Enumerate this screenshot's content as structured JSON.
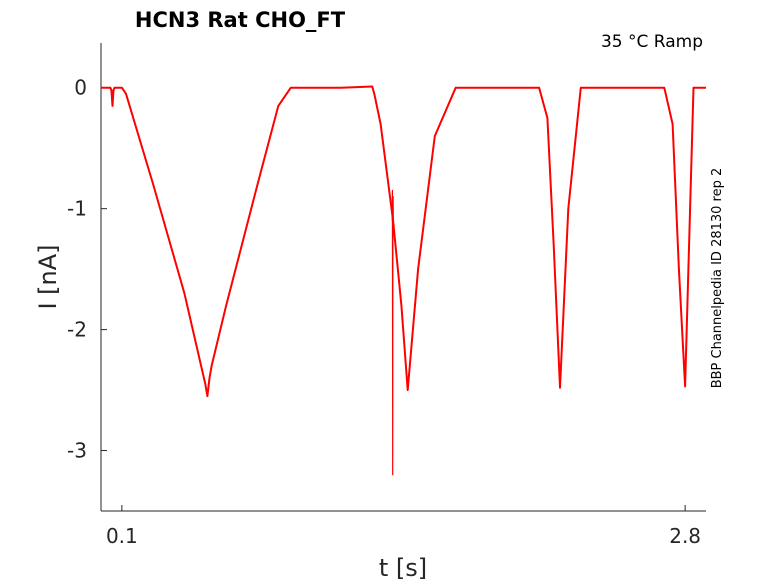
{
  "chart_data": {
    "type": "line",
    "title": "HCN3  Rat  CHO_FT",
    "annotation": "35 °C  Ramp",
    "side_label": "BBP Channelpedia ID 28130 rep 2",
    "xlabel": "t [s]",
    "ylabel": "I [nA]",
    "xlim": [
      0.0,
      2.9
    ],
    "ylim": [
      -3.5,
      0.37
    ],
    "x_ticks": [
      0.1,
      2.8
    ],
    "x_tick_labels": [
      "0.1",
      "2.8"
    ],
    "y_ticks": [
      0,
      -1,
      -2,
      -3
    ],
    "y_tick_labels": [
      "0",
      "-1",
      "-2",
      "-3"
    ],
    "grid": false,
    "series": [
      {
        "color": "#ff0000",
        "x": [
          0.0,
          0.045,
          0.05,
          0.055,
          0.06,
          0.065,
          0.1,
          0.12,
          0.25,
          0.4,
          0.5,
          0.51,
          0.52,
          0.53,
          0.6,
          0.75,
          0.85,
          0.91,
          1.0,
          1.15,
          1.3,
          1.31,
          1.34,
          1.4,
          1.44,
          1.47,
          1.52,
          1.6,
          1.7,
          1.8,
          2.0,
          2.1,
          2.14,
          2.17,
          2.2,
          2.24,
          2.3,
          2.4,
          2.5,
          2.6,
          2.7,
          2.74,
          2.77,
          2.8,
          2.84,
          2.9
        ],
        "y": [
          0.0,
          0.0,
          -0.02,
          -0.15,
          -0.02,
          0.0,
          0.0,
          -0.05,
          -0.8,
          -1.7,
          -2.45,
          -2.55,
          -2.4,
          -2.3,
          -1.8,
          -0.8,
          -0.15,
          0.0,
          0.0,
          0.0,
          0.01,
          -0.05,
          -0.3,
          -1.1,
          -1.8,
          -2.5,
          -1.5,
          -0.4,
          0.0,
          0.0,
          0.0,
          0.0,
          -0.25,
          -1.3,
          -2.48,
          -1.0,
          0.0,
          0.0,
          0.0,
          0.0,
          0.0,
          -0.3,
          -1.5,
          -2.47,
          0.0,
          0.0
        ]
      },
      {
        "color": "#ff0000",
        "x": [
          1.396,
          1.397,
          1.398,
          1.399,
          1.4,
          1.401
        ],
        "y": [
          -1.1,
          -0.85,
          -3.2,
          -1.0,
          -0.9,
          -1.1
        ]
      }
    ]
  }
}
